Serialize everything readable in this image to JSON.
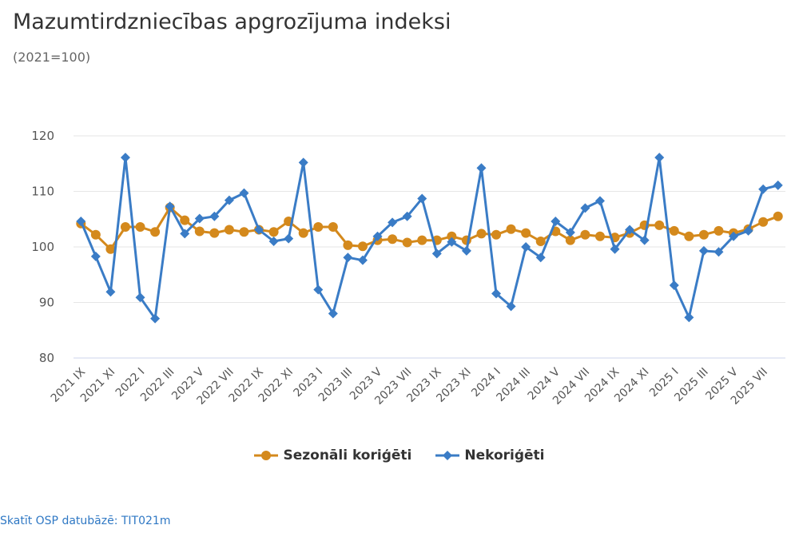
{
  "title": "Mazumtirdzniecības apgrozījuma indeksi",
  "subtitle": "(2021=100)",
  "source_link": "Skatīt OSP datubāzē: TIT021m",
  "colors": {
    "sa": "#d4891c",
    "nsa": "#3a7cc6",
    "grid": "#e6e6e6",
    "axis": "#ccd6eb"
  },
  "chart_data": {
    "type": "line",
    "ylim": [
      80,
      120
    ],
    "yticks": [
      80,
      90,
      100,
      110,
      120
    ],
    "grid": true,
    "legend": "bottom",
    "x": [
      "2021 IX",
      "2021 X",
      "2021 XI",
      "2021 XII",
      "2022 I",
      "2022 II",
      "2022 III",
      "2022 IV",
      "2022 V",
      "2022 VI",
      "2022 VII",
      "2022 VIII",
      "2022 IX",
      "2022 X",
      "2022 XI",
      "2022 XII",
      "2023 I",
      "2023 II",
      "2023 III",
      "2023 IV",
      "2023 V",
      "2023 VI",
      "2023 VII",
      "2023 VIII",
      "2023 IX",
      "2023 X",
      "2023 XI",
      "2023 XII",
      "2024 I",
      "2024 II",
      "2024 III",
      "2024 IV",
      "2024 V",
      "2024 VI",
      "2024 VII",
      "2024 VIII",
      "2024 IX",
      "2024 X",
      "2024 XI",
      "2024 XII",
      "2025 I",
      "2025 II",
      "2025 III",
      "2025 IV",
      "2025 V",
      "2025 VI",
      "2025 VII",
      "2025 VIII"
    ],
    "xtick_labels": [
      "2021 IX",
      "2021 XI",
      "2022 I",
      "2022 III",
      "2022 V",
      "2022 VII",
      "2022 IX",
      "2022 XI",
      "2023 I",
      "2023 III",
      "2023 V",
      "2023 VII",
      "2023 IX",
      "2023 XI",
      "2024 I",
      "2024 III",
      "2024 V",
      "2024 VII",
      "2024 IX",
      "2024 XI",
      "2025 I",
      "2025 III",
      "2025 V",
      "2025 VII"
    ],
    "series": [
      {
        "name": "Sezonāli koriģēti",
        "marker": "circle",
        "values": [
          104.2,
          102.2,
          99.6,
          103.6,
          103.6,
          102.7,
          107.1,
          104.8,
          102.8,
          102.5,
          103.1,
          102.7,
          103.1,
          102.7,
          104.6,
          102.5,
          103.6,
          103.6,
          100.3,
          100.1,
          101.2,
          101.4,
          100.8,
          101.2,
          101.2,
          101.9,
          101.2,
          102.4,
          102.2,
          103.2,
          102.5,
          101.0,
          102.8,
          101.2,
          102.2,
          101.9,
          101.7,
          102.5,
          103.9,
          103.9,
          102.9,
          101.9,
          102.2,
          102.9,
          102.5,
          103.2,
          104.5,
          105.5
        ]
      },
      {
        "name": "Nekoriģēti",
        "marker": "diamond",
        "values": [
          104.6,
          98.3,
          91.9,
          116.1,
          90.9,
          87.1,
          107.3,
          102.4,
          105.1,
          105.5,
          108.4,
          109.7,
          103.1,
          101.0,
          101.5,
          115.2,
          92.3,
          88.0,
          98.1,
          97.6,
          101.9,
          104.4,
          105.5,
          108.7,
          98.8,
          100.9,
          99.3,
          114.2,
          91.6,
          89.3,
          100.0,
          98.1,
          104.6,
          102.6,
          107.0,
          108.3,
          99.6,
          103.1,
          101.2,
          116.1,
          93.1,
          87.3,
          99.3,
          99.1,
          101.9,
          102.9,
          110.4,
          111.1
        ]
      }
    ]
  }
}
